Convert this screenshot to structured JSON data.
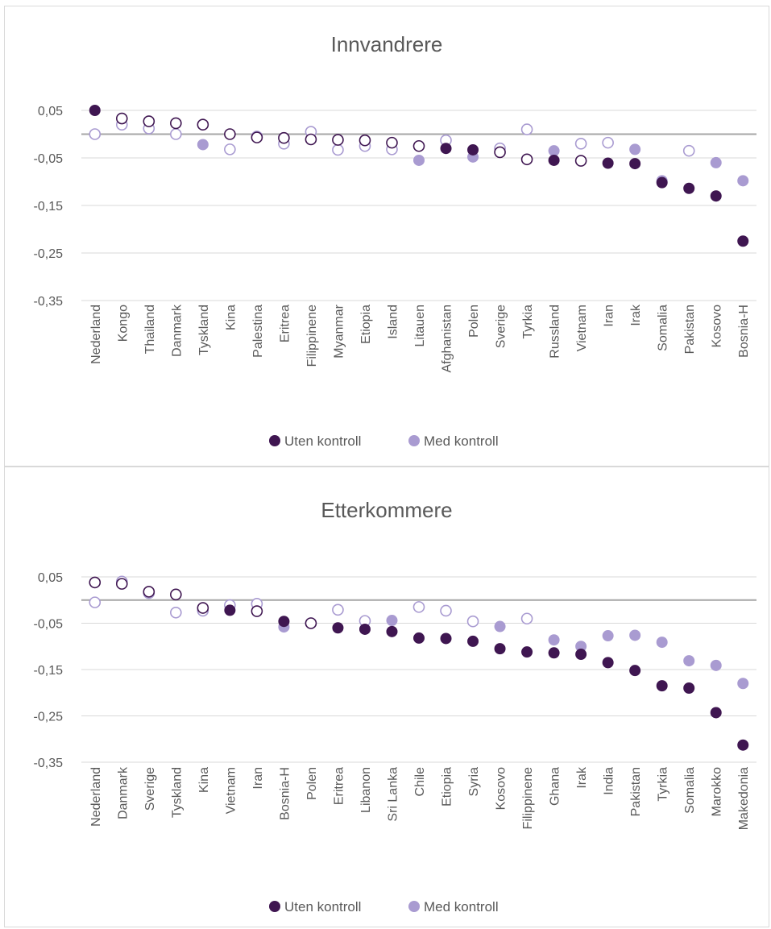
{
  "legend": {
    "uten_label": "Uten kontroll",
    "med_label": "Med kontroll"
  },
  "colors": {
    "uten": "#3f1651",
    "med": "#a99bd1",
    "zero_line": "#a6a6a6",
    "grid": "#d9d9d9"
  },
  "chart_data": [
    {
      "type": "scatter",
      "title": "Innvandrere",
      "ylim": [
        -0.35,
        0.05
      ],
      "yticks": [
        "0,05",
        "-0,05",
        "-0,15",
        "-0,25",
        "-0,35"
      ],
      "grid": true,
      "legend_position": "bottom",
      "categories": [
        "Nederland",
        "Kongo",
        "Thailand",
        "Danmark",
        "Tyskland",
        "Kina",
        "Palestina",
        "Eritrea",
        "Filippinene",
        "Myanmar",
        "Etiopia",
        "Island",
        "Litauen",
        "Afghanistan",
        "Polen",
        "Sverige",
        "Tyrkia",
        "Russland",
        "Vietnam",
        "Iran",
        "Irak",
        "Somalia",
        "Pakistan",
        "Kosovo",
        "Bosnia-H"
      ],
      "series": [
        {
          "name": "Uten kontroll",
          "values": [
            0.05,
            0.033,
            0.027,
            0.023,
            0.02,
            0.0,
            -0.007,
            -0.008,
            -0.011,
            -0.012,
            -0.013,
            -0.018,
            -0.025,
            -0.03,
            -0.033,
            -0.038,
            -0.053,
            -0.055,
            -0.056,
            -0.061,
            -0.062,
            -0.102,
            -0.114,
            -0.13,
            -0.225
          ],
          "filled": [
            true,
            false,
            false,
            false,
            false,
            false,
            false,
            false,
            false,
            false,
            false,
            false,
            false,
            true,
            true,
            false,
            false,
            true,
            false,
            true,
            true,
            true,
            true,
            true,
            true
          ]
        },
        {
          "name": "Med kontroll",
          "values": [
            0.0,
            0.02,
            0.012,
            0.0,
            -0.022,
            -0.032,
            -0.005,
            -0.02,
            0.005,
            -0.033,
            -0.025,
            -0.032,
            -0.055,
            -0.013,
            -0.048,
            -0.03,
            0.01,
            -0.035,
            -0.02,
            -0.018,
            -0.032,
            -0.098,
            -0.035,
            -0.06,
            -0.098
          ],
          "filled": [
            false,
            false,
            false,
            false,
            true,
            false,
            false,
            false,
            false,
            false,
            false,
            false,
            true,
            false,
            true,
            false,
            false,
            true,
            false,
            false,
            true,
            true,
            false,
            true,
            true
          ]
        }
      ]
    },
    {
      "type": "scatter",
      "title": "Etterkommere",
      "ylim": [
        -0.35,
        0.05
      ],
      "yticks": [
        "0,05",
        "-0,05",
        "-0,15",
        "-0,25",
        "-0,35"
      ],
      "grid": true,
      "legend_position": "bottom",
      "categories": [
        "Nederland",
        "Danmark",
        "Sverige",
        "Tyskland",
        "Kina",
        "Vietnam",
        "Iran",
        "Bosnia-H",
        "Polen",
        "Eritrea",
        "Libanon",
        "Sri Lanka",
        "Chile",
        "Etiopia",
        "Syria",
        "Kosovo",
        "Filippinene",
        "Ghana",
        "Irak",
        "India",
        "Pakistan",
        "Tyrkia",
        "Somalia",
        "Marokko",
        "Makedonia"
      ],
      "series": [
        {
          "name": "Uten kontroll",
          "values": [
            0.038,
            0.035,
            0.018,
            0.012,
            -0.017,
            -0.022,
            -0.024,
            -0.046,
            -0.05,
            -0.06,
            -0.063,
            -0.068,
            -0.082,
            -0.083,
            -0.089,
            -0.105,
            -0.112,
            -0.114,
            -0.117,
            -0.135,
            -0.152,
            -0.185,
            -0.19,
            -0.243,
            -0.313
          ],
          "filled": [
            false,
            false,
            false,
            false,
            false,
            true,
            false,
            true,
            false,
            true,
            true,
            true,
            true,
            true,
            true,
            true,
            true,
            true,
            true,
            true,
            true,
            true,
            true,
            true,
            true
          ]
        },
        {
          "name": "Med kontroll",
          "values": [
            -0.005,
            0.04,
            0.015,
            -0.027,
            -0.023,
            -0.011,
            -0.008,
            -0.058,
            -0.05,
            -0.021,
            -0.045,
            -0.044,
            -0.015,
            -0.023,
            -0.046,
            -0.057,
            -0.04,
            -0.086,
            -0.1,
            -0.077,
            -0.076,
            -0.091,
            -0.131,
            -0.141,
            -0.18
          ],
          "filled": [
            false,
            false,
            false,
            false,
            false,
            false,
            false,
            true,
            false,
            false,
            false,
            true,
            false,
            false,
            false,
            true,
            false,
            true,
            true,
            true,
            true,
            true,
            true,
            true,
            true
          ]
        }
      ]
    }
  ]
}
